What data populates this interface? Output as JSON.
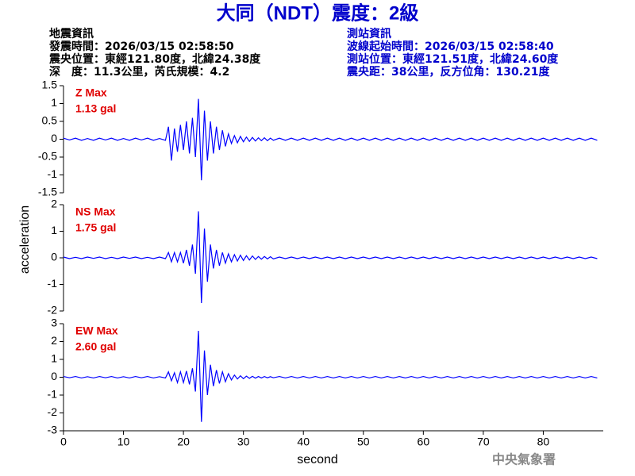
{
  "header": {
    "title": "大同（NDT）震度：2級",
    "left": [
      "地震資訊",
      "發震時間：2026/03/15 02:58:50",
      "震央位置：東經121.80度，北緯24.38度",
      "深　度：11.3公里，芮氏規模：4.2"
    ],
    "right": [
      "測站資訊",
      "波線起始時間：2026/03/15 02:58:40",
      "測站位置：東經121.51度，北緯24.60度",
      "震央距：38公里，反方位角：130.21度"
    ]
  },
  "footer": "中央氣象署",
  "chart_data": {
    "type": "line",
    "xlabel": "second",
    "ylabel": "acceleration",
    "xlim": [
      0,
      90
    ],
    "xticks": [
      0,
      10,
      20,
      30,
      40,
      50,
      60,
      70,
      80
    ],
    "x": [
      0,
      1,
      2,
      3,
      4,
      5,
      6,
      7,
      8,
      9,
      10,
      11,
      12,
      13,
      14,
      15,
      16,
      17,
      17.5,
      18,
      18.5,
      19,
      19.5,
      20,
      20.5,
      21,
      21.5,
      22,
      22.5,
      23,
      23.5,
      24,
      24.5,
      25,
      25.5,
      26,
      26.5,
      27,
      27.5,
      28,
      28.5,
      29,
      29.5,
      30,
      30.5,
      31,
      31.5,
      32,
      32.5,
      33,
      33.5,
      34,
      34.5,
      35,
      36,
      37,
      38,
      39,
      40,
      41,
      42,
      43,
      44,
      45,
      46,
      47,
      48,
      49,
      50,
      51,
      52,
      53,
      54,
      55,
      56,
      57,
      58,
      59,
      60,
      61,
      62,
      63,
      64,
      65,
      66,
      67,
      68,
      69,
      70,
      71,
      72,
      73,
      74,
      75,
      76,
      77,
      78,
      79,
      80,
      81,
      82,
      83,
      84,
      85,
      86,
      87,
      88,
      89
    ],
    "series": [
      {
        "name": "Z Max",
        "max_label": "1.13 gal",
        "color": "#0000ff",
        "ylim": [
          -1.5,
          1.5
        ],
        "yticks": [
          -1.5,
          -1,
          -0.5,
          0,
          0.5,
          1,
          1.5
        ],
        "values": [
          0.03,
          -0.02,
          0.03,
          -0.03,
          0.02,
          -0.03,
          0.03,
          -0.02,
          0.03,
          -0.03,
          0.02,
          -0.03,
          0.03,
          -0.02,
          0.03,
          -0.03,
          0.02,
          -0.03,
          0.35,
          -0.6,
          0.3,
          -0.35,
          0.4,
          -0.3,
          0.5,
          -0.4,
          0.6,
          -0.5,
          1.13,
          -1.15,
          0.8,
          -0.6,
          0.5,
          -0.4,
          0.35,
          -0.3,
          0.25,
          -0.2,
          0.15,
          -0.12,
          0.1,
          -0.1,
          0.08,
          -0.07,
          0.06,
          -0.06,
          0.05,
          -0.05,
          0.04,
          -0.04,
          0.04,
          -0.04,
          0.03,
          -0.03,
          0.03,
          -0.03,
          0.03,
          -0.03,
          0.03,
          -0.03,
          0.03,
          -0.03,
          0.03,
          -0.03,
          0.03,
          -0.03,
          0.03,
          -0.03,
          0.03,
          -0.03,
          0.03,
          -0.03,
          0.03,
          -0.03,
          0.03,
          -0.03,
          0.03,
          -0.03,
          0.03,
          -0.03,
          0.03,
          -0.03,
          0.03,
          -0.03,
          0.03,
          -0.03,
          0.03,
          -0.03,
          0.03,
          -0.03,
          0.03,
          -0.03,
          0.03,
          -0.03,
          0.03,
          -0.03,
          0.03,
          -0.03,
          0.03,
          -0.03,
          0.03,
          -0.03,
          0.03,
          -0.03,
          0.03,
          -0.03,
          0.03,
          -0.03
        ]
      },
      {
        "name": "NS Max",
        "max_label": "1.75 gal",
        "color": "#0000ff",
        "ylim": [
          -2,
          2
        ],
        "yticks": [
          -2,
          -1,
          0,
          1,
          2
        ],
        "values": [
          0.03,
          -0.03,
          0.02,
          -0.03,
          0.03,
          -0.02,
          0.03,
          -0.03,
          0.02,
          -0.03,
          0.03,
          -0.02,
          0.03,
          -0.03,
          0.02,
          -0.03,
          0.03,
          -0.03,
          0.2,
          -0.15,
          0.2,
          -0.15,
          0.2,
          -0.2,
          0.3,
          -0.3,
          0.5,
          -0.6,
          1.75,
          -1.7,
          1.1,
          -0.9,
          0.5,
          -0.4,
          0.3,
          -0.3,
          0.2,
          -0.2,
          0.15,
          -0.15,
          0.12,
          -0.12,
          0.1,
          -0.1,
          0.08,
          -0.08,
          0.07,
          -0.06,
          0.05,
          -0.05,
          0.05,
          -0.04,
          0.04,
          -0.04,
          0.03,
          -0.03,
          0.03,
          -0.03,
          0.03,
          -0.03,
          0.03,
          -0.03,
          0.03,
          -0.03,
          0.03,
          -0.03,
          0.03,
          -0.03,
          0.03,
          -0.03,
          0.03,
          -0.03,
          0.03,
          -0.03,
          0.03,
          -0.03,
          0.03,
          -0.03,
          0.03,
          -0.03,
          0.03,
          -0.03,
          0.03,
          -0.03,
          0.03,
          -0.03,
          0.03,
          -0.03,
          0.03,
          -0.03,
          0.03,
          -0.03,
          0.03,
          -0.03,
          0.03,
          -0.03,
          0.03,
          -0.03,
          0.03,
          -0.03,
          0.03,
          -0.03,
          0.03,
          -0.03,
          0.03,
          -0.03,
          0.03,
          -0.03
        ]
      },
      {
        "name": "EW Max",
        "max_label": "2.60 gal",
        "color": "#0000ff",
        "ylim": [
          -3,
          3
        ],
        "yticks": [
          -3,
          -2,
          -1,
          0,
          1,
          2,
          3
        ],
        "values": [
          0.04,
          -0.03,
          0.04,
          -0.04,
          0.03,
          -0.04,
          0.04,
          -0.03,
          0.04,
          -0.04,
          0.03,
          -0.04,
          0.04,
          -0.03,
          0.04,
          -0.04,
          0.03,
          -0.04,
          0.3,
          -0.2,
          0.25,
          -0.3,
          0.3,
          -0.3,
          0.35,
          -0.4,
          0.5,
          -0.8,
          2.6,
          -2.5,
          1.5,
          -1.0,
          0.7,
          -0.5,
          0.4,
          -0.35,
          0.3,
          -0.25,
          0.2,
          -0.15,
          0.12,
          -0.1,
          0.08,
          -0.08,
          0.06,
          -0.06,
          0.05,
          -0.05,
          0.04,
          -0.04,
          0.04,
          -0.03,
          0.03,
          -0.03,
          0.04,
          -0.04,
          0.04,
          -0.04,
          0.04,
          -0.04,
          0.04,
          -0.04,
          0.04,
          -0.04,
          0.04,
          -0.04,
          0.04,
          -0.04,
          0.04,
          -0.04,
          0.04,
          -0.04,
          0.04,
          -0.04,
          0.04,
          -0.04,
          0.04,
          -0.04,
          0.04,
          -0.04,
          0.04,
          -0.04,
          0.04,
          -0.04,
          0.04,
          -0.04,
          0.04,
          -0.04,
          0.04,
          -0.04,
          0.04,
          -0.04,
          0.04,
          -0.04,
          0.04,
          -0.04,
          0.04,
          -0.04,
          0.04,
          -0.04,
          0.04,
          -0.04,
          0.04,
          -0.04,
          0.04,
          -0.04,
          0.04,
          -0.04
        ]
      }
    ]
  }
}
